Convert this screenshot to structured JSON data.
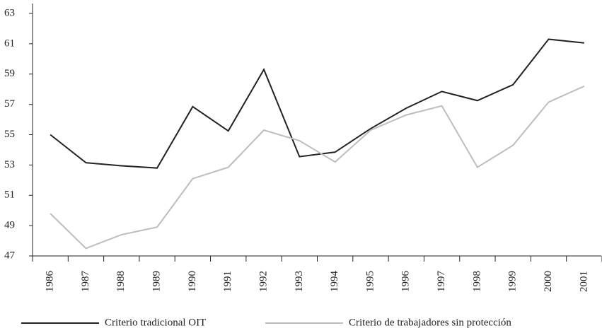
{
  "chart_data": {
    "type": "line",
    "categories": [
      "1986",
      "1987",
      "1988",
      "1989",
      "1990",
      "1991",
      "1992",
      "1993",
      "1994",
      "1995",
      "1996",
      "1997",
      "1998",
      "1999",
      "2000",
      "2001"
    ],
    "series": [
      {
        "name": "Criterio tradicional OIT",
        "color": "#222222",
        "values": [
          55.0,
          53.15,
          52.95,
          52.8,
          56.85,
          55.25,
          59.3,
          53.55,
          53.85,
          55.4,
          56.75,
          57.85,
          57.25,
          58.3,
          61.3,
          61.05
        ]
      },
      {
        "name": "Criterio de trabajadores sin protección",
        "color": "#bdbdbd",
        "values": [
          49.8,
          47.5,
          48.4,
          48.9,
          52.1,
          52.85,
          55.3,
          54.6,
          53.2,
          55.3,
          56.3,
          56.9,
          52.85,
          54.3,
          57.15,
          58.2
        ]
      }
    ],
    "ylim": [
      47,
      63
    ],
    "yticks": [
      47,
      49,
      51,
      53,
      55,
      57,
      59,
      61,
      63
    ],
    "grid": false,
    "legend": "bottom"
  }
}
